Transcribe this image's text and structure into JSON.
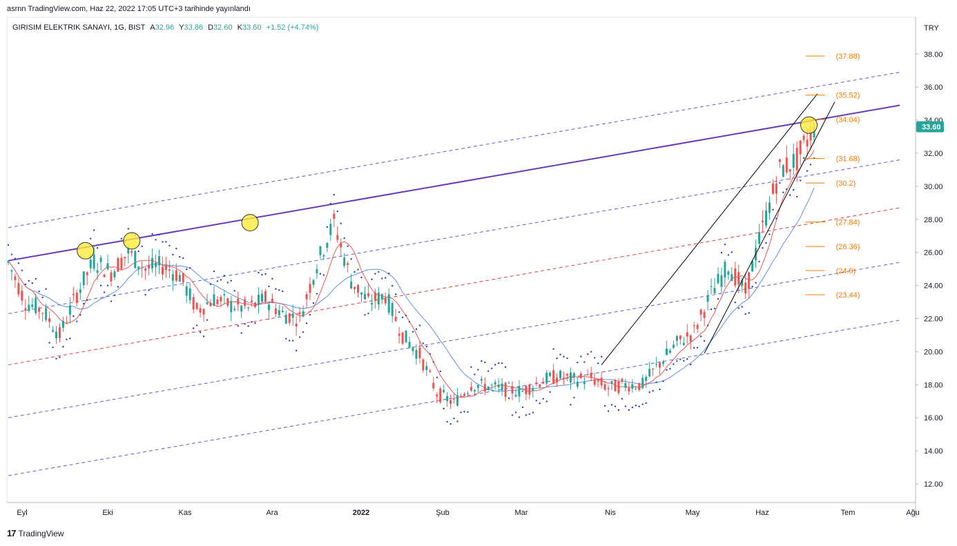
{
  "published": "asrnn TradingView.com, Haz 22, 2022 17:05 UTC+3 tarihinde yayınlandı",
  "legend": {
    "symbol": "GIRISIM ELEKTRIK SANAYI, 1G, BIST",
    "open_label": "A",
    "open": "32.96",
    "high_label": "Y",
    "high": "33.86",
    "low_label": "D",
    "low": "32.60",
    "close_label": "K",
    "close": "33.60",
    "change": "+1.52 (+4.74%)"
  },
  "brand": "TradingView",
  "colors": {
    "up": "#26a69a",
    "down": "#ef5350",
    "trend": "#673ab7",
    "channel": "#5c5ccf",
    "mid": "#e53935",
    "fib": "#f57c00",
    "ma_fast": "#ef5350",
    "ma_slow": "#5b8def",
    "sar": "#1e3fbf",
    "wedge": "#000000",
    "marker": "#ffeb3b"
  },
  "chart_data": {
    "type": "candlestick",
    "currency": "TRY",
    "last_price": "33.60",
    "ylim": [
      11,
      39.5
    ],
    "y_ticks": [
      "12.00",
      "14.00",
      "16.00",
      "18.00",
      "20.00",
      "22.00",
      "24.00",
      "26.00",
      "28.00",
      "30.00",
      "32.00",
      "34.00",
      "36.00",
      "38.00"
    ],
    "x_ticks": [
      "Eyl",
      "Eki",
      "Kas",
      "Ara",
      "2022",
      "Şub",
      "Mar",
      "Nis",
      "May",
      "Haz",
      "Tem",
      "Ağu"
    ],
    "fib_levels": [
      "(37.88)",
      "(35.52)",
      "(34.04)",
      "(31.68)",
      "(30.2)",
      "(27.84)",
      "(26.36)",
      "(24.9)",
      "(23.44)"
    ],
    "fib_values": [
      37.88,
      35.52,
      34.04,
      31.68,
      30.2,
      27.84,
      26.36,
      24.9,
      23.44
    ],
    "fib_at_week": 46.5,
    "price_path": [
      [
        0,
        25.4
      ],
      [
        1,
        23
      ],
      [
        2,
        22.5
      ],
      [
        3,
        21
      ],
      [
        4,
        23.5
      ],
      [
        5,
        25.5
      ],
      [
        6,
        24.8
      ],
      [
        7,
        26
      ],
      [
        8,
        25
      ],
      [
        9,
        25.2
      ],
      [
        10,
        24.6
      ],
      [
        11,
        22.5
      ],
      [
        12,
        23.2
      ],
      [
        13,
        22.8
      ],
      [
        14,
        22.6
      ],
      [
        15,
        23.2
      ],
      [
        16,
        22.3
      ],
      [
        17,
        22
      ],
      [
        18,
        25.3
      ],
      [
        19,
        27.8
      ],
      [
        20,
        24.3
      ],
      [
        21,
        23
      ],
      [
        22,
        23.4
      ],
      [
        23,
        21
      ],
      [
        24,
        19.8
      ],
      [
        25,
        17.5
      ],
      [
        26,
        16.9
      ],
      [
        27,
        18
      ],
      [
        28,
        17.9
      ],
      [
        29,
        17.7
      ],
      [
        30,
        17.6
      ],
      [
        31,
        18.2
      ],
      [
        32,
        18.5
      ],
      [
        33,
        18.3
      ],
      [
        34,
        18.4
      ],
      [
        35,
        17.8
      ],
      [
        36,
        18
      ],
      [
        37,
        18
      ],
      [
        38,
        19.3
      ],
      [
        39,
        20.5
      ],
      [
        40,
        21.2
      ],
      [
        41,
        23.5
      ],
      [
        42,
        25.2
      ],
      [
        43,
        23.6
      ],
      [
        44,
        27.5
      ],
      [
        45,
        31
      ],
      [
        46,
        31.6
      ],
      [
        47,
        33.6
      ]
    ],
    "markers": [
      [
        4.5,
        26.1
      ],
      [
        7.2,
        26.7
      ],
      [
        14.1,
        27.8
      ],
      [
        46.7,
        33.7
      ]
    ],
    "trend_line": [
      [
        0,
        25.5
      ],
      [
        52,
        34.9
      ]
    ],
    "channel_lines": [
      [
        [
          0,
          27.5
        ],
        [
          52,
          36.9
        ]
      ],
      [
        [
          0,
          22.3
        ],
        [
          52,
          31.6
        ]
      ],
      [
        [
          0,
          16
        ],
        [
          52,
          25.4
        ]
      ],
      [
        [
          0,
          12.5
        ],
        [
          52,
          21.9
        ]
      ]
    ],
    "mid_line": [
      [
        0,
        19.2
      ],
      [
        52,
        28.7
      ]
    ],
    "wedge_upper": [
      [
        34.6,
        19.2
      ],
      [
        47.2,
        35.6
      ]
    ],
    "wedge_lower": [
      [
        40.6,
        19.9
      ],
      [
        48.2,
        35.1
      ]
    ]
  }
}
